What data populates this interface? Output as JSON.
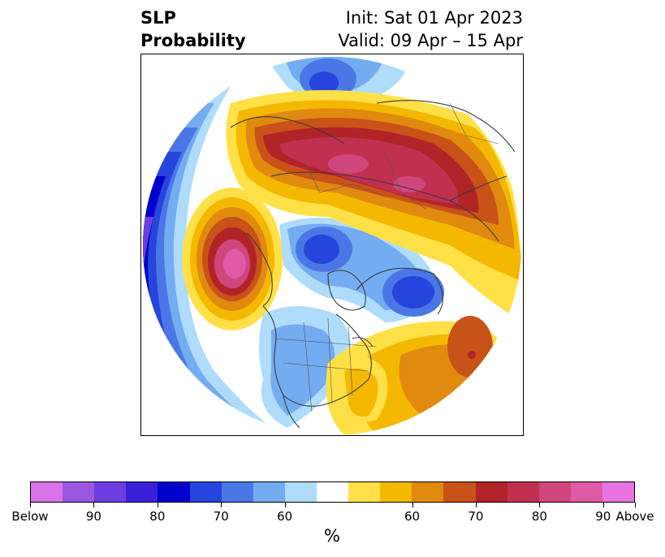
{
  "title": {
    "left_line1": "SLP",
    "left_line2": "Probability",
    "right_line1": "Init: Sat 01 Apr 2023",
    "right_line2": "Valid: 09 Apr – 15 Apr"
  },
  "map": {
    "projection": "north-polar-stereographic",
    "variable": "SLP",
    "features": [
      "probability-contours",
      "coastlines",
      "country-borders",
      "us-state-borders"
    ]
  },
  "colorbar": {
    "unit_label": "%",
    "colors": [
      "#d873e8",
      "#9b57e0",
      "#6d3ee0",
      "#3a20d8",
      "#0000cc",
      "#2545dc",
      "#4b77e6",
      "#74acf2",
      "#aedcfa",
      "#ffffff",
      "#ffe047",
      "#f4b800",
      "#e08a10",
      "#c85218",
      "#b02428",
      "#c23050",
      "#d0467c",
      "#e05aa8",
      "#e774e0"
    ],
    "tick_labels": [
      "Below",
      "90",
      "80",
      "70",
      "60",
      "60",
      "70",
      "80",
      "90",
      "Above"
    ]
  }
}
